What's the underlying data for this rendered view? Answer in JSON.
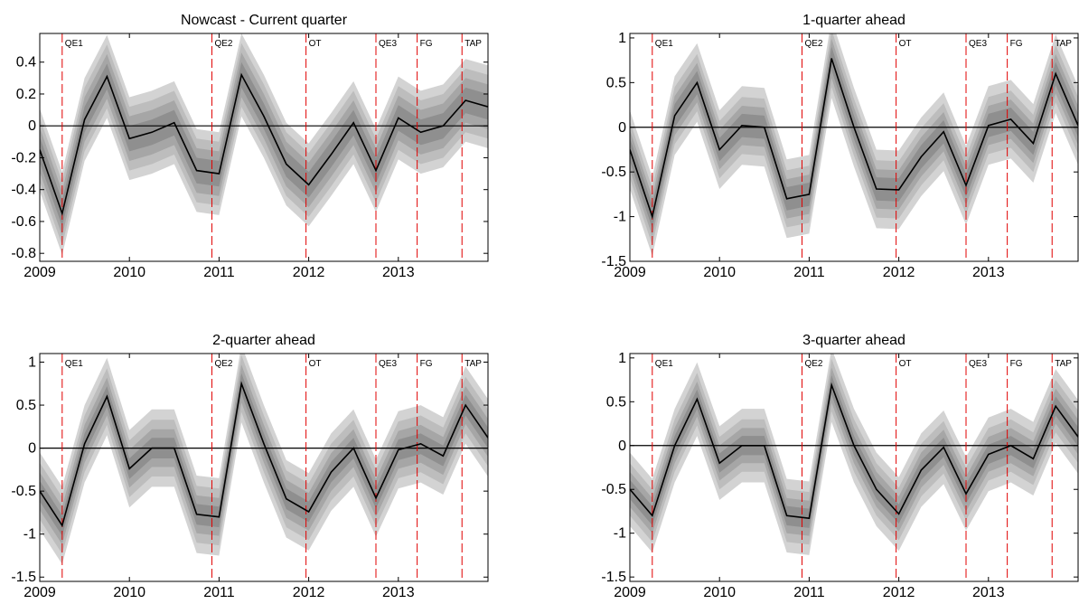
{
  "colors": {
    "band_outer": "#d3d3d3",
    "band_2": "#bdbdbd",
    "band_3": "#a6a6a6",
    "band_inner": "#8f8f8f",
    "median_line": "#000000",
    "event_line": "#e00000",
    "zero_line": "#000000"
  },
  "chart_data": [
    {
      "type": "line",
      "title": "Nowcast - Current quarter",
      "x": [
        2009.0,
        2009.25,
        2009.5,
        2009.75,
        2010.0,
        2010.25,
        2010.5,
        2010.75,
        2011.0,
        2011.25,
        2011.5,
        2011.75,
        2012.0,
        2012.25,
        2012.5,
        2012.75,
        2013.0,
        2013.25,
        2013.5,
        2013.75,
        2014.0
      ],
      "median": [
        -0.15,
        -0.55,
        0.04,
        0.31,
        -0.08,
        -0.04,
        0.02,
        -0.28,
        -0.3,
        0.32,
        0.06,
        -0.24,
        -0.37,
        -0.18,
        0.02,
        -0.28,
        0.05,
        -0.04,
        0.0,
        0.16,
        0.12
      ],
      "band_half_widths": [
        0.08,
        0.14,
        0.2,
        0.26
      ],
      "xlim": [
        2009.0,
        2014.0
      ],
      "ylim": [
        -0.85,
        0.58
      ],
      "yticks": [
        -0.8,
        -0.6,
        -0.4,
        -0.2,
        0,
        0.2,
        0.4
      ],
      "ytick_labels": [
        "-0.8",
        "-0.6",
        "-0.4",
        "-0.2",
        "0",
        "0.2",
        "0.4"
      ],
      "xticks": [
        2009,
        2010,
        2011,
        2012,
        2013
      ],
      "xtick_labels": [
        "2009",
        "2010",
        "2011",
        "2012",
        "2013"
      ],
      "events": [
        {
          "label": "QE1",
          "x": 2009.25
        },
        {
          "label": "QE2",
          "x": 2010.92
        },
        {
          "label": "OT",
          "x": 2011.97
        },
        {
          "label": "QE3",
          "x": 2012.75
        },
        {
          "label": "FG",
          "x": 2013.21
        },
        {
          "label": "TAP",
          "x": 2013.71
        }
      ]
    },
    {
      "type": "line",
      "title": "1-quarter ahead",
      "x": [
        2009.0,
        2009.25,
        2009.5,
        2009.75,
        2010.0,
        2010.25,
        2010.5,
        2010.75,
        2011.0,
        2011.25,
        2011.5,
        2011.75,
        2012.0,
        2012.25,
        2012.5,
        2012.75,
        2013.0,
        2013.25,
        2013.5,
        2013.75,
        2014.0
      ],
      "median": [
        -0.25,
        -1.0,
        0.13,
        0.5,
        -0.25,
        0.02,
        0.0,
        -0.8,
        -0.75,
        0.77,
        0.0,
        -0.69,
        -0.7,
        -0.33,
        -0.05,
        -0.65,
        0.02,
        0.09,
        -0.18,
        0.6,
        0.02
      ],
      "band_half_widths": [
        0.13,
        0.22,
        0.32,
        0.44
      ],
      "xlim": [
        2009.0,
        2014.0
      ],
      "ylim": [
        -1.5,
        1.05
      ],
      "yticks": [
        -1.5,
        -1,
        -0.5,
        0,
        0.5,
        1
      ],
      "ytick_labels": [
        "-1.5",
        "-1",
        "-0.5",
        "0",
        "0.5",
        "1"
      ],
      "xticks": [
        2009,
        2010,
        2011,
        2012,
        2013
      ],
      "xtick_labels": [
        "2009",
        "2010",
        "2011",
        "2012",
        "2013"
      ],
      "events": [
        {
          "label": "QE1",
          "x": 2009.25
        },
        {
          "label": "QE2",
          "x": 2010.92
        },
        {
          "label": "OT",
          "x": 2011.97
        },
        {
          "label": "QE3",
          "x": 2012.75
        },
        {
          "label": "FG",
          "x": 2013.21
        },
        {
          "label": "TAP",
          "x": 2013.71
        }
      ]
    },
    {
      "type": "line",
      "title": "2-quarter ahead",
      "x": [
        2009.0,
        2009.25,
        2009.5,
        2009.75,
        2010.0,
        2010.25,
        2010.5,
        2010.75,
        2011.0,
        2011.25,
        2011.5,
        2011.75,
        2012.0,
        2012.25,
        2012.5,
        2012.75,
        2013.0,
        2013.25,
        2013.5,
        2013.75,
        2014.0
      ],
      "median": [
        -0.5,
        -0.9,
        0.05,
        0.6,
        -0.24,
        0.0,
        0.0,
        -0.77,
        -0.8,
        0.75,
        0.05,
        -0.59,
        -0.74,
        -0.28,
        0.0,
        -0.58,
        -0.02,
        0.05,
        -0.09,
        0.5,
        0.12
      ],
      "band_half_widths": [
        0.12,
        0.22,
        0.33,
        0.45
      ],
      "xlim": [
        2009.0,
        2014.0
      ],
      "ylim": [
        -1.55,
        1.1
      ],
      "yticks": [
        -1.5,
        -1,
        -0.5,
        0,
        0.5,
        1
      ],
      "ytick_labels": [
        "-1.5",
        "-1",
        "-0.5",
        "0",
        "0.5",
        "1"
      ],
      "xticks": [
        2009,
        2010,
        2011,
        2012,
        2013
      ],
      "xtick_labels": [
        "2009",
        "2010",
        "2011",
        "2012",
        "2013"
      ],
      "events": [
        {
          "label": "QE1",
          "x": 2009.25
        },
        {
          "label": "QE2",
          "x": 2010.92
        },
        {
          "label": "OT",
          "x": 2011.97
        },
        {
          "label": "QE3",
          "x": 2012.75
        },
        {
          "label": "FG",
          "x": 2013.21
        },
        {
          "label": "TAP",
          "x": 2013.71
        }
      ]
    },
    {
      "type": "line",
      "title": "3-quarter ahead",
      "x": [
        2009.0,
        2009.25,
        2009.5,
        2009.75,
        2010.0,
        2010.25,
        2010.5,
        2010.75,
        2011.0,
        2011.25,
        2011.5,
        2011.75,
        2012.0,
        2012.25,
        2012.5,
        2012.75,
        2013.0,
        2013.25,
        2013.5,
        2013.75,
        2014.0
      ],
      "median": [
        -0.5,
        -0.8,
        0.0,
        0.53,
        -0.2,
        0.0,
        0.0,
        -0.8,
        -0.83,
        0.69,
        0.0,
        -0.5,
        -0.78,
        -0.28,
        -0.02,
        -0.55,
        -0.1,
        0.0,
        -0.15,
        0.45,
        0.1
      ],
      "band_half_widths": [
        0.11,
        0.2,
        0.3,
        0.42
      ],
      "xlim": [
        2009.0,
        2014.0
      ],
      "ylim": [
        -1.55,
        1.05
      ],
      "yticks": [
        -1.5,
        -1,
        -0.5,
        0,
        0.5,
        1
      ],
      "ytick_labels": [
        "-1.5",
        "-1",
        "-0.5",
        "0",
        "0.5",
        "1"
      ],
      "xticks": [
        2009,
        2010,
        2011,
        2012,
        2013
      ],
      "xtick_labels": [
        "2009",
        "2010",
        "2011",
        "2012",
        "2013"
      ],
      "events": [
        {
          "label": "QE1",
          "x": 2009.25
        },
        {
          "label": "QE2",
          "x": 2010.92
        },
        {
          "label": "OT",
          "x": 2011.97
        },
        {
          "label": "QE3",
          "x": 2012.75
        },
        {
          "label": "FG",
          "x": 2013.21
        },
        {
          "label": "TAP",
          "x": 2013.71
        }
      ]
    }
  ]
}
